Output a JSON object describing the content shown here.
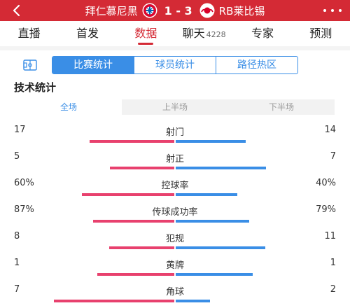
{
  "header": {
    "home_team": "拜仁慕尼黑",
    "score": "1 - 3",
    "away_team": "RB莱比锡"
  },
  "nav": [
    {
      "label": "直播",
      "count": ""
    },
    {
      "label": "首发",
      "count": ""
    },
    {
      "label": "数据",
      "count": "",
      "active": true
    },
    {
      "label": "聊天",
      "count": "4228"
    },
    {
      "label": "专家",
      "count": ""
    },
    {
      "label": "预测",
      "count": ""
    }
  ],
  "subtabs": [
    "比赛统计",
    "球员统计",
    "路径热区"
  ],
  "section_title": "技术统计",
  "periods": [
    "全场",
    "上半场",
    "下半场"
  ],
  "colors": {
    "home": "#e8416e",
    "away": "#3a8ee6",
    "brand": "#d42a35"
  },
  "stats": [
    {
      "label": "射门",
      "home": "17",
      "away": "14",
      "home_val": 17,
      "away_val": 14
    },
    {
      "label": "射正",
      "home": "5",
      "away": "7",
      "home_val": 5,
      "away_val": 7
    },
    {
      "label": "控球率",
      "home": "60%",
      "away": "40%",
      "home_val": 60,
      "away_val": 40
    },
    {
      "label": "传球成功率",
      "home": "87%",
      "away": "79%",
      "home_val": 87,
      "away_val": 79
    },
    {
      "label": "犯规",
      "home": "8",
      "away": "11",
      "home_val": 8,
      "away_val": 11
    },
    {
      "label": "黄牌",
      "home": "1",
      "away": "1",
      "home_val": 1,
      "away_val": 1
    },
    {
      "label": "角球",
      "home": "7",
      "away": "2",
      "home_val": 7,
      "away_val": 2
    }
  ]
}
